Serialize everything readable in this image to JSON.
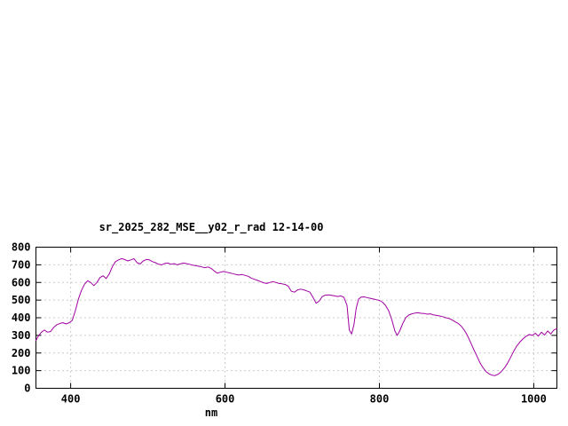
{
  "colors": {
    "background": "#ffffff",
    "axis": "#000000",
    "grid": "#999999",
    "line": "#a000a0"
  },
  "chart_data": {
    "type": "line",
    "title": "sr_2025_282_MSE__y02_r_rad 12-14-00",
    "xlabel": "nm",
    "ylabel": "",
    "xlim": [
      355,
      1030
    ],
    "ylim": [
      0,
      800
    ],
    "x_ticks": [
      400,
      600,
      800,
      1000
    ],
    "y_ticks": [
      0,
      100,
      200,
      300,
      400,
      500,
      600,
      700,
      800
    ],
    "grid": true,
    "legend": "none",
    "series": [
      {
        "name": "sr_2025_282_MSE__y02_r_rad",
        "color": "#a000a0",
        "points": [
          [
            355,
            270
          ],
          [
            358,
            295
          ],
          [
            362,
            318
          ],
          [
            366,
            330
          ],
          [
            370,
            318
          ],
          [
            374,
            322
          ],
          [
            378,
            345
          ],
          [
            382,
            360
          ],
          [
            386,
            368
          ],
          [
            390,
            372
          ],
          [
            394,
            365
          ],
          [
            398,
            372
          ],
          [
            402,
            385
          ],
          [
            406,
            440
          ],
          [
            410,
            505
          ],
          [
            414,
            555
          ],
          [
            418,
            590
          ],
          [
            422,
            610
          ],
          [
            426,
            600
          ],
          [
            430,
            582
          ],
          [
            434,
            600
          ],
          [
            438,
            628
          ],
          [
            442,
            638
          ],
          [
            446,
            622
          ],
          [
            450,
            648
          ],
          [
            454,
            690
          ],
          [
            458,
            718
          ],
          [
            462,
            728
          ],
          [
            466,
            735
          ],
          [
            470,
            730
          ],
          [
            474,
            722
          ],
          [
            478,
            728
          ],
          [
            482,
            735
          ],
          [
            486,
            712
          ],
          [
            490,
            705
          ],
          [
            494,
            722
          ],
          [
            498,
            730
          ],
          [
            502,
            728
          ],
          [
            506,
            718
          ],
          [
            510,
            712
          ],
          [
            514,
            703
          ],
          [
            518,
            700
          ],
          [
            522,
            708
          ],
          [
            526,
            710
          ],
          [
            530,
            703
          ],
          [
            534,
            707
          ],
          [
            538,
            700
          ],
          [
            542,
            705
          ],
          [
            546,
            710
          ],
          [
            550,
            707
          ],
          [
            554,
            703
          ],
          [
            558,
            698
          ],
          [
            562,
            695
          ],
          [
            566,
            692
          ],
          [
            570,
            688
          ],
          [
            574,
            684
          ],
          [
            578,
            688
          ],
          [
            582,
            680
          ],
          [
            586,
            665
          ],
          [
            590,
            652
          ],
          [
            594,
            658
          ],
          [
            598,
            662
          ],
          [
            602,
            658
          ],
          [
            606,
            654
          ],
          [
            610,
            650
          ],
          [
            614,
            645
          ],
          [
            618,
            642
          ],
          [
            622,
            645
          ],
          [
            626,
            640
          ],
          [
            630,
            635
          ],
          [
            634,
            625
          ],
          [
            638,
            618
          ],
          [
            642,
            612
          ],
          [
            646,
            605
          ],
          [
            650,
            598
          ],
          [
            654,
            594
          ],
          [
            658,
            600
          ],
          [
            662,
            605
          ],
          [
            666,
            600
          ],
          [
            670,
            594
          ],
          [
            674,
            592
          ],
          [
            678,
            588
          ],
          [
            682,
            578
          ],
          [
            686,
            550
          ],
          [
            690,
            545
          ],
          [
            694,
            558
          ],
          [
            698,
            562
          ],
          [
            702,
            558
          ],
          [
            706,
            552
          ],
          [
            710,
            545
          ],
          [
            714,
            515
          ],
          [
            718,
            482
          ],
          [
            722,
            495
          ],
          [
            726,
            520
          ],
          [
            730,
            528
          ],
          [
            734,
            530
          ],
          [
            738,
            527
          ],
          [
            742,
            524
          ],
          [
            746,
            520
          ],
          [
            750,
            524
          ],
          [
            754,
            515
          ],
          [
            758,
            470
          ],
          [
            761,
            330
          ],
          [
            764,
            308
          ],
          [
            767,
            360
          ],
          [
            770,
            455
          ],
          [
            773,
            505
          ],
          [
            776,
            516
          ],
          [
            780,
            518
          ],
          [
            784,
            514
          ],
          [
            788,
            510
          ],
          [
            792,
            506
          ],
          [
            796,
            502
          ],
          [
            800,
            498
          ],
          [
            804,
            488
          ],
          [
            808,
            470
          ],
          [
            812,
            440
          ],
          [
            816,
            390
          ],
          [
            820,
            325
          ],
          [
            823,
            300
          ],
          [
            826,
            322
          ],
          [
            830,
            365
          ],
          [
            834,
            400
          ],
          [
            838,
            415
          ],
          [
            842,
            422
          ],
          [
            846,
            426
          ],
          [
            850,
            428
          ],
          [
            854,
            425
          ],
          [
            858,
            424
          ],
          [
            862,
            420
          ],
          [
            866,
            422
          ],
          [
            870,
            416
          ],
          [
            874,
            413
          ],
          [
            878,
            410
          ],
          [
            882,
            406
          ],
          [
            886,
            400
          ],
          [
            890,
            396
          ],
          [
            894,
            388
          ],
          [
            898,
            378
          ],
          [
            902,
            368
          ],
          [
            906,
            352
          ],
          [
            910,
            330
          ],
          [
            914,
            300
          ],
          [
            918,
            262
          ],
          [
            922,
            222
          ],
          [
            926,
            185
          ],
          [
            930,
            148
          ],
          [
            934,
            118
          ],
          [
            938,
            95
          ],
          [
            942,
            82
          ],
          [
            946,
            74
          ],
          [
            950,
            72
          ],
          [
            954,
            80
          ],
          [
            958,
            95
          ],
          [
            962,
            115
          ],
          [
            966,
            142
          ],
          [
            970,
            175
          ],
          [
            974,
            210
          ],
          [
            978,
            240
          ],
          [
            982,
            262
          ],
          [
            986,
            280
          ],
          [
            990,
            295
          ],
          [
            994,
            305
          ],
          [
            998,
            300
          ],
          [
            1002,
            312
          ],
          [
            1006,
            296
          ],
          [
            1010,
            318
          ],
          [
            1014,
            302
          ],
          [
            1018,
            325
          ],
          [
            1022,
            308
          ],
          [
            1026,
            330
          ],
          [
            1030,
            338
          ]
        ]
      }
    ]
  }
}
